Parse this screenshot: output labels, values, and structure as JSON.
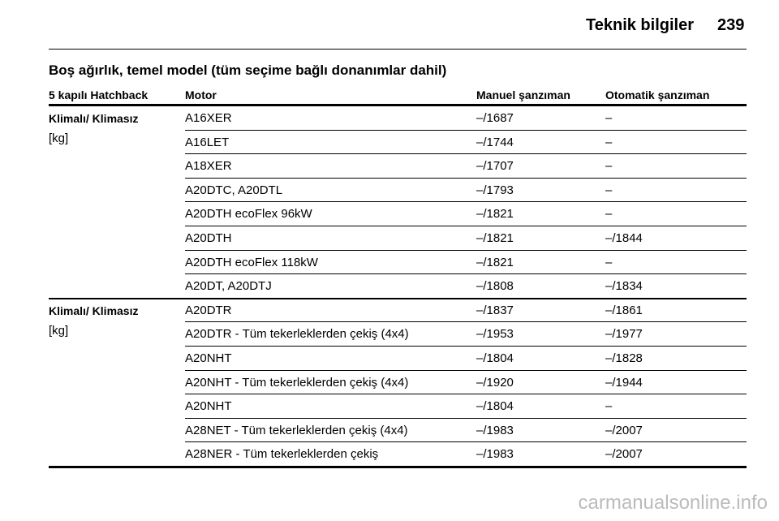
{
  "header": {
    "title": "Teknik bilgiler",
    "page": "239"
  },
  "section_title": "Boş ağırlık, temel model (tüm seçime bağlı donanımlar dahil)",
  "table": {
    "columns": [
      "5 kapılı Hatchback",
      "Motor",
      "Manuel şanzıman",
      "Otomatik şanzıman"
    ],
    "groups": [
      {
        "label": "Klimalı/ Klimasız",
        "unit": "[kg]",
        "rows": [
          [
            "A16XER",
            "–/1687",
            "–"
          ],
          [
            "A16LET",
            "–/1744",
            "–"
          ],
          [
            "A18XER",
            "–/1707",
            "–"
          ],
          [
            "A20DTC, A20DTL",
            "–/1793",
            "–"
          ],
          [
            "A20DTH ecoFlex 96kW",
            "–/1821",
            "–"
          ],
          [
            "A20DTH",
            "–/1821",
            "–/1844"
          ],
          [
            "A20DTH ecoFlex 118kW",
            "–/1821",
            "–"
          ],
          [
            "A20DT, A20DTJ",
            "–/1808",
            "–/1834"
          ]
        ]
      },
      {
        "label": "Klimalı/ Klimasız",
        "unit": "[kg]",
        "rows": [
          [
            "A20DTR",
            "–/1837",
            "–/1861"
          ],
          [
            "A20DTR - Tüm tekerleklerden çekiş (4x4)",
            "–/1953",
            "–/1977"
          ],
          [
            "A20NHT",
            "–/1804",
            "–/1828"
          ],
          [
            "A20NHT - Tüm tekerleklerden çekiş (4x4)",
            "–/1920",
            "–/1944"
          ],
          [
            "A20NHT",
            "–/1804",
            "–"
          ],
          [
            "A28NET - Tüm tekerleklerden çekiş (4x4)",
            "–/1983",
            "–/2007"
          ],
          [
            "A28NER - Tüm tekerleklerden çekiş",
            "–/1983",
            "–/2007"
          ]
        ]
      }
    ]
  },
  "watermark": "carmanualsonline.info"
}
